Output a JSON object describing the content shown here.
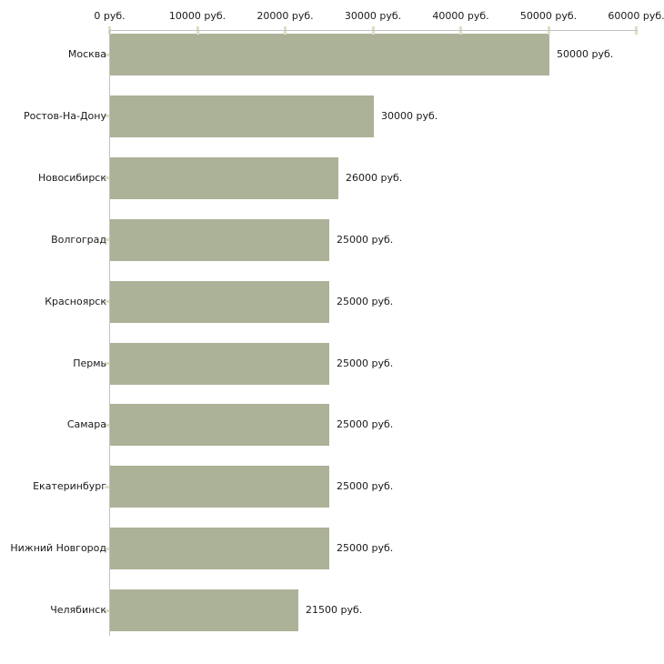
{
  "chart_data": {
    "type": "bar",
    "orientation": "horizontal",
    "categories": [
      "Москва",
      "Ростов-На-Дону",
      "Новосибирск",
      "Волгоград",
      "Красноярск",
      "Пермь",
      "Самара",
      "Екатеринбург",
      "Нижний Новгород",
      "Челябинск"
    ],
    "values": [
      50000,
      30000,
      26000,
      25000,
      25000,
      25000,
      25000,
      25000,
      25000,
      21500
    ],
    "value_labels": [
      "50000 руб.",
      "30000 руб.",
      "26000 руб.",
      "25000 руб.",
      "25000 руб.",
      "25000 руб.",
      "25000 руб.",
      "25000 руб.",
      "25000 руб.",
      "21500 руб."
    ],
    "x_axis": {
      "position": "top",
      "range": [
        0,
        60000
      ],
      "ticks": [
        0,
        10000,
        20000,
        30000,
        40000,
        50000,
        60000
      ],
      "tick_labels": [
        "0 руб.",
        "10000 руб.",
        "20000 руб.",
        "30000 руб.",
        "40000 руб.",
        "50000 руб.",
        "60000 руб."
      ]
    },
    "grid": false,
    "legend": false,
    "colors": {
      "bar": "#acb297",
      "axis_line": "#c2c2c2",
      "tick_mark": "#dedfc2",
      "text": "#1a1a1a",
      "background": "#ffffff"
    }
  }
}
